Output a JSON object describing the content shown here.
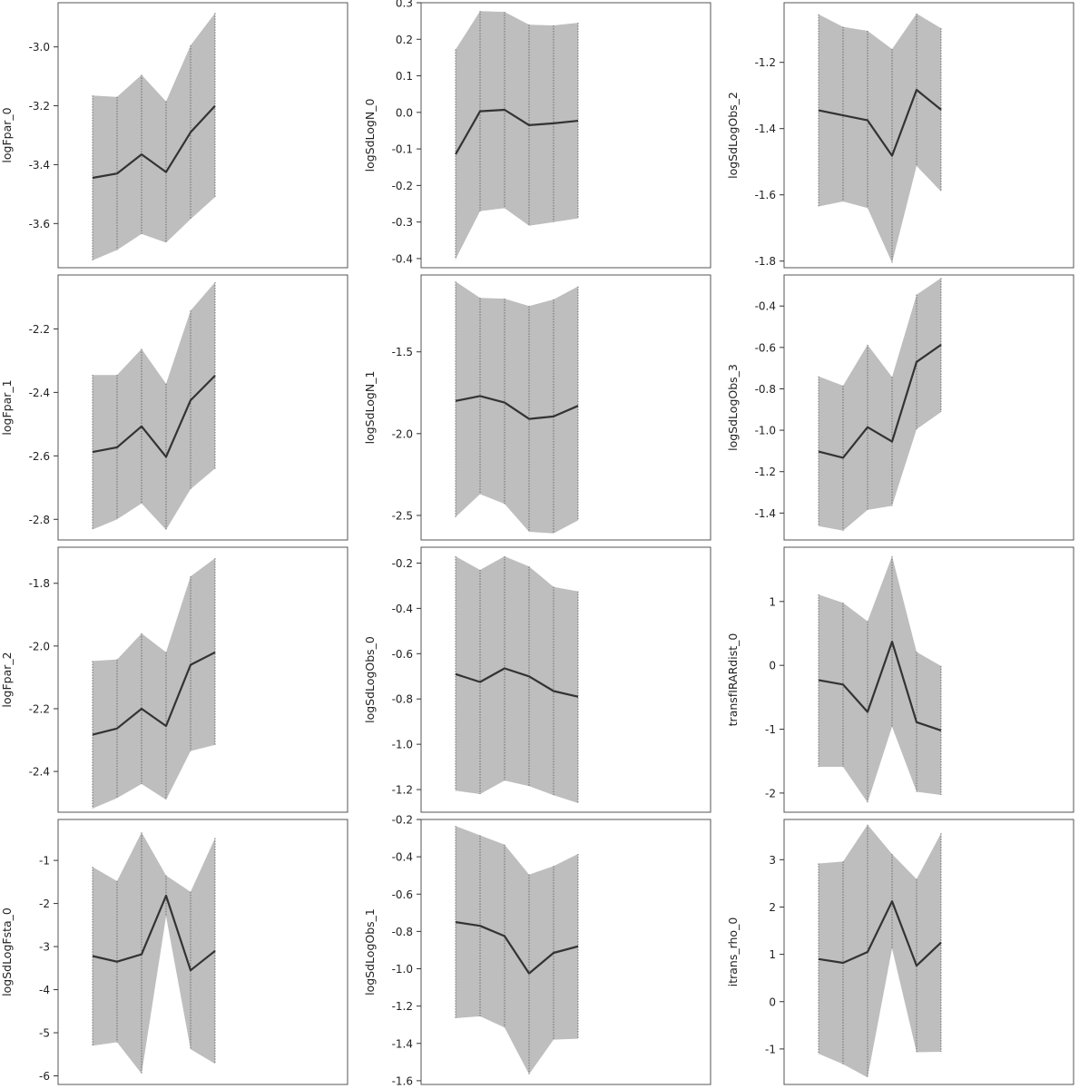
{
  "chart_data": [
    {
      "type": "area",
      "ylabel": "logFpar_0",
      "ylim": [
        -3.75,
        -2.85
      ],
      "yticks": [
        -3.6,
        -3.4,
        -3.2,
        -3.0
      ],
      "ytick_labels": [
        "-3.6",
        "-3.4",
        "-3.2",
        "-3.0"
      ],
      "x": [
        1,
        2,
        3,
        4,
        5,
        6
      ],
      "estimate": [
        -3.445,
        -3.43,
        -3.365,
        -3.425,
        -3.29,
        -3.2
      ],
      "lower": [
        -3.725,
        -3.69,
        -3.635,
        -3.665,
        -3.585,
        -3.51
      ],
      "upper": [
        -3.165,
        -3.17,
        -3.095,
        -3.185,
        -2.995,
        -2.885
      ]
    },
    {
      "type": "area",
      "ylabel": "logSdLogN_0",
      "ylim": [
        -0.425,
        0.3
      ],
      "yticks": [
        -0.4,
        -0.3,
        -0.2,
        -0.1,
        0.0,
        0.1,
        0.2,
        0.3
      ],
      "ytick_labels": [
        "-0.4",
        "-0.3",
        "-0.2",
        "-0.1",
        "0.0",
        "0.1",
        "0.2",
        "0.3"
      ],
      "x": [
        1,
        2,
        3,
        4,
        5,
        6
      ],
      "estimate": [
        -0.115,
        0.003,
        0.007,
        -0.035,
        -0.03,
        -0.023
      ],
      "lower": [
        -0.402,
        -0.27,
        -0.262,
        -0.31,
        -0.3,
        -0.29
      ],
      "upper": [
        0.172,
        0.277,
        0.275,
        0.24,
        0.238,
        0.245
      ]
    },
    {
      "type": "area",
      "ylabel": "logSdLogObs_2",
      "ylim": [
        -1.82,
        -1.02
      ],
      "yticks": [
        -1.8,
        -1.6,
        -1.4,
        -1.2
      ],
      "ytick_labels": [
        "-1.8",
        "-1.6",
        "-1.4",
        "-1.2"
      ],
      "x": [
        1,
        2,
        3,
        4,
        5,
        6
      ],
      "estimate": [
        -1.345,
        -1.36,
        -1.375,
        -1.482,
        -1.283,
        -1.343
      ],
      "lower": [
        -1.635,
        -1.62,
        -1.64,
        -1.805,
        -1.513,
        -1.59
      ],
      "upper": [
        -1.055,
        -1.093,
        -1.105,
        -1.16,
        -1.053,
        -1.097
      ]
    },
    {
      "type": "area",
      "ylabel": "logFpar_1",
      "ylim": [
        -2.865,
        -2.03
      ],
      "yticks": [
        -2.8,
        -2.6,
        -2.4,
        -2.2
      ],
      "ytick_labels": [
        "-2.8",
        "-2.6",
        "-2.4",
        "-2.2"
      ],
      "x": [
        1,
        2,
        3,
        4,
        5,
        6
      ],
      "estimate": [
        -2.588,
        -2.573,
        -2.507,
        -2.603,
        -2.425,
        -2.347
      ],
      "lower": [
        -2.832,
        -2.8,
        -2.75,
        -2.833,
        -2.705,
        -2.64
      ],
      "upper": [
        -2.345,
        -2.345,
        -2.263,
        -2.373,
        -2.142,
        -2.053
      ]
    },
    {
      "type": "area",
      "ylabel": "logSdLogN_1",
      "ylim": [
        -2.65,
        -1.03
      ],
      "yticks": [
        -2.5,
        -2.0,
        -1.5
      ],
      "ytick_labels": [
        "-2.5",
        "-2.0",
        "-1.5"
      ],
      "x": [
        1,
        2,
        3,
        4,
        5,
        6
      ],
      "estimate": [
        -1.8,
        -1.77,
        -1.81,
        -1.91,
        -1.895,
        -1.83
      ],
      "lower": [
        -2.51,
        -2.37,
        -2.43,
        -2.6,
        -2.61,
        -2.53
      ],
      "upper": [
        -1.07,
        -1.17,
        -1.175,
        -1.22,
        -1.18,
        -1.1
      ]
    },
    {
      "type": "area",
      "ylabel": "logSdLogObs_3",
      "ylim": [
        -1.53,
        -0.25
      ],
      "yticks": [
        -1.4,
        -1.2,
        -1.0,
        -0.8,
        -0.6,
        -0.4
      ],
      "ytick_labels": [
        "-1.4",
        "-1.2",
        "-1.0",
        "-0.8",
        "-0.6",
        "-0.4"
      ],
      "x": [
        1,
        2,
        3,
        4,
        5,
        6
      ],
      "estimate": [
        -1.103,
        -1.133,
        -0.985,
        -1.055,
        -0.67,
        -0.587
      ],
      "lower": [
        -1.463,
        -1.485,
        -1.385,
        -1.365,
        -0.995,
        -0.912
      ],
      "upper": [
        -0.74,
        -0.785,
        -0.587,
        -0.743,
        -0.345,
        -0.265
      ]
    },
    {
      "type": "area",
      "ylabel": "logFpar_2",
      "ylim": [
        -2.53,
        -1.685
      ],
      "yticks": [
        -2.4,
        -2.2,
        -2.0,
        -1.8
      ],
      "ytick_labels": [
        "-2.4",
        "-2.2",
        "-2.0",
        "-1.8"
      ],
      "x": [
        1,
        2,
        3,
        4,
        5,
        6
      ],
      "estimate": [
        -2.283,
        -2.263,
        -2.2,
        -2.255,
        -2.06,
        -2.02
      ],
      "lower": [
        -2.518,
        -2.485,
        -2.44,
        -2.49,
        -2.335,
        -2.315
      ],
      "upper": [
        -2.048,
        -2.043,
        -1.96,
        -2.02,
        -1.778,
        -1.72
      ]
    },
    {
      "type": "area",
      "ylabel": "logSdLogObs_0",
      "ylim": [
        -1.3,
        -0.13
      ],
      "yticks": [
        -1.2,
        -1.0,
        -0.8,
        -0.6,
        -0.4,
        -0.2
      ],
      "ytick_labels": [
        "-1.2",
        "-1.0",
        "-0.8",
        "-0.6",
        "-0.4",
        "-0.2"
      ],
      "x": [
        1,
        2,
        3,
        4,
        5,
        6
      ],
      "estimate": [
        -0.69,
        -0.725,
        -0.665,
        -0.7,
        -0.765,
        -0.79
      ],
      "lower": [
        -1.205,
        -1.22,
        -1.16,
        -1.185,
        -1.225,
        -1.26
      ],
      "upper": [
        -0.17,
        -0.23,
        -0.17,
        -0.215,
        -0.305,
        -0.325
      ]
    },
    {
      "type": "area",
      "ylabel": "transfIRARdist_0",
      "ylim": [
        -2.3,
        1.85
      ],
      "yticks": [
        -2,
        -1,
        0,
        1
      ],
      "ytick_labels": [
        "-2",
        "-1",
        "0",
        "1"
      ],
      "x": [
        1,
        2,
        3,
        4,
        5,
        6
      ],
      "estimate": [
        -0.23,
        -0.3,
        -0.73,
        0.37,
        -0.89,
        -1.02
      ],
      "lower": [
        -1.59,
        -1.59,
        -2.15,
        -0.96,
        -1.98,
        -2.03
      ],
      "upper": [
        1.11,
        0.98,
        0.69,
        1.71,
        0.21,
        -0.01
      ]
    },
    {
      "type": "area",
      "ylabel": "logSdLogFsta_0",
      "ylim": [
        -6.2,
        -0.05
      ],
      "yticks": [
        -6,
        -5,
        -4,
        -3,
        -2,
        -1
      ],
      "ytick_labels": [
        "-6",
        "-5",
        "-4",
        "-3",
        "-2",
        "-1"
      ],
      "x": [
        1,
        2,
        3,
        4,
        5,
        6
      ],
      "estimate": [
        -3.22,
        -3.35,
        -3.18,
        -1.82,
        -3.55,
        -3.1
      ],
      "lower": [
        -5.3,
        -5.22,
        -5.95,
        -2.3,
        -5.38,
        -5.72
      ],
      "upper": [
        -1.15,
        -1.48,
        -0.35,
        -1.35,
        -1.73,
        -0.48
      ]
    },
    {
      "type": "area",
      "ylabel": "logSdLogObs_1",
      "ylim": [
        -1.62,
        -0.2
      ],
      "yticks": [
        -1.6,
        -1.4,
        -1.2,
        -1.0,
        -0.8,
        -0.6,
        -0.4,
        -0.2
      ],
      "ytick_labels": [
        "-1.6",
        "-1.4",
        "-1.2",
        "-1.0",
        "-0.8",
        "-0.6",
        "-0.4",
        "-0.2"
      ],
      "x": [
        1,
        2,
        3,
        4,
        5,
        6
      ],
      "estimate": [
        -0.75,
        -0.77,
        -0.825,
        -1.025,
        -0.915,
        -0.88
      ],
      "lower": [
        -1.265,
        -1.255,
        -1.315,
        -1.565,
        -1.38,
        -1.375
      ],
      "upper": [
        -0.235,
        -0.285,
        -0.335,
        -0.495,
        -0.45,
        -0.385
      ]
    },
    {
      "type": "area",
      "ylabel": "itrans_rho_0",
      "ylim": [
        -1.75,
        3.85
      ],
      "yticks": [
        -1,
        0,
        1,
        2,
        3
      ],
      "ytick_labels": [
        "-1",
        "0",
        "1",
        "2",
        "3"
      ],
      "x": [
        1,
        2,
        3,
        4,
        5,
        6
      ],
      "estimate": [
        0.9,
        0.82,
        1.05,
        2.12,
        0.76,
        1.25
      ],
      "lower": [
        -1.1,
        -1.32,
        -1.6,
        1.12,
        -1.07,
        -1.06
      ],
      "upper": [
        2.92,
        2.96,
        3.74,
        3.12,
        2.59,
        3.56
      ]
    }
  ]
}
